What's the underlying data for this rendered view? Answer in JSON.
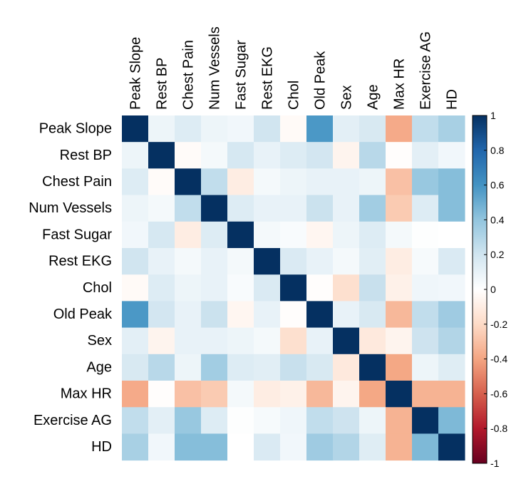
{
  "chart_data": {
    "type": "heatmap",
    "title": "",
    "variables": [
      "Peak Slope",
      "Rest BP",
      "Chest Pain",
      "Num Vessels",
      "Fast Sugar",
      "Rest EKG",
      "Chol",
      "Old Peak",
      "Sex",
      "Age",
      "Max HR",
      "Exercise AG",
      "HD"
    ],
    "matrix": [
      [
        1.0,
        0.08,
        0.15,
        0.08,
        0.06,
        0.2,
        -0.03,
        0.58,
        0.12,
        0.17,
        -0.38,
        0.25,
        0.33
      ],
      [
        0.08,
        1.0,
        -0.02,
        0.05,
        0.18,
        0.1,
        0.15,
        0.19,
        -0.06,
        0.28,
        -0.01,
        0.12,
        0.06
      ],
      [
        0.15,
        -0.02,
        1.0,
        0.25,
        -0.1,
        0.05,
        0.08,
        0.1,
        0.1,
        0.08,
        -0.3,
        0.38,
        0.43
      ],
      [
        0.08,
        0.05,
        0.25,
        1.0,
        0.15,
        0.1,
        0.1,
        0.22,
        0.1,
        0.35,
        -0.26,
        0.15,
        0.43
      ],
      [
        0.06,
        0.18,
        -0.1,
        0.15,
        1.0,
        0.05,
        0.03,
        -0.05,
        0.08,
        0.15,
        0.05,
        0.01,
        0.0
      ],
      [
        0.2,
        0.1,
        0.05,
        0.1,
        0.05,
        1.0,
        0.16,
        0.1,
        0.05,
        0.13,
        -0.1,
        0.04,
        0.16
      ],
      [
        -0.03,
        0.15,
        0.08,
        0.1,
        0.03,
        0.16,
        1.0,
        -0.01,
        -0.17,
        0.23,
        -0.08,
        0.07,
        0.06
      ],
      [
        0.58,
        0.19,
        0.1,
        0.22,
        -0.05,
        0.1,
        -0.01,
        1.0,
        0.1,
        0.17,
        -0.33,
        0.25,
        0.36
      ],
      [
        0.12,
        -0.06,
        0.1,
        0.1,
        0.08,
        0.05,
        -0.17,
        0.1,
        1.0,
        -0.12,
        -0.06,
        0.21,
        0.3
      ],
      [
        0.17,
        0.28,
        0.08,
        0.35,
        0.15,
        0.13,
        0.23,
        0.17,
        -0.12,
        1.0,
        -0.39,
        0.08,
        0.14
      ],
      [
        -0.38,
        -0.01,
        -0.3,
        -0.26,
        0.05,
        -0.1,
        -0.08,
        -0.33,
        -0.06,
        -0.39,
        1.0,
        -0.35,
        -0.35
      ],
      [
        0.25,
        0.12,
        0.38,
        0.15,
        0.01,
        0.04,
        0.07,
        0.25,
        0.21,
        0.08,
        -0.35,
        1.0,
        0.45
      ],
      [
        0.33,
        0.06,
        0.43,
        0.43,
        0.0,
        0.16,
        0.06,
        0.36,
        0.3,
        0.14,
        -0.35,
        0.45,
        1.0
      ]
    ],
    "color_scale": {
      "range": [
        -1,
        1
      ],
      "ticks": [
        "1",
        "0.8",
        "0.6",
        "0.4",
        "0.2",
        "0",
        "-0.2",
        "-0.4",
        "-0.6",
        "-0.8",
        "-1"
      ],
      "colors": [
        "#67001f",
        "#b2182b",
        "#d6604d",
        "#f4a582",
        "#fddbc7",
        "#ffffff",
        "#d1e5f0",
        "#92c5de",
        "#4393c3",
        "#2166ac",
        "#053061"
      ]
    },
    "legend_position": "right"
  }
}
